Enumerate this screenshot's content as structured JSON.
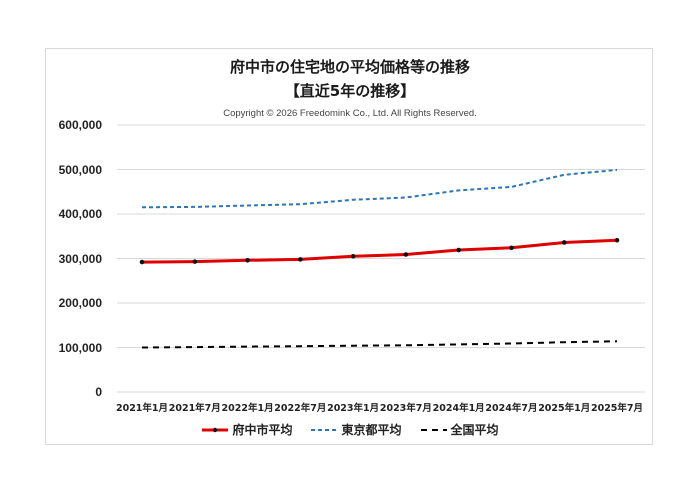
{
  "chart_data": {
    "type": "line",
    "title": "府中市の住宅地の平均価格等の推移",
    "subtitle": "【直近5年の推移】",
    "copyright": "Copyright © 2026 Freedomink Co., Ltd. All Rights Reserved.",
    "xlabel": "",
    "ylabel": "",
    "ylim": [
      0,
      600000
    ],
    "yticks": [
      "600,000",
      "500,000",
      "400,000",
      "300,000",
      "200,000",
      "100,000",
      "0"
    ],
    "grid": true,
    "legend_position": "bottom",
    "categories": [
      "2021年1月",
      "2021年7月",
      "2022年1月",
      "2022年7月",
      "2023年1月",
      "2023年7月",
      "2024年1月",
      "2024年7月",
      "2025年1月",
      "2025年7月"
    ],
    "series": [
      {
        "name": "府中市平均",
        "color": "#e00000",
        "style": "solid-markers",
        "values": [
          292000,
          293000,
          296000,
          298000,
          305000,
          309000,
          319000,
          324000,
          336000,
          341000
        ]
      },
      {
        "name": "東京都平均",
        "color": "#2e75b6",
        "style": "dashed",
        "values": [
          415000,
          416000,
          419000,
          422000,
          432000,
          437000,
          453000,
          461000,
          488000,
          499000
        ]
      },
      {
        "name": "全国平均",
        "color": "#000000",
        "style": "long-dashed",
        "values": [
          100000,
          101000,
          102000,
          103000,
          104000,
          105000,
          107000,
          109000,
          112000,
          114000
        ]
      }
    ]
  }
}
